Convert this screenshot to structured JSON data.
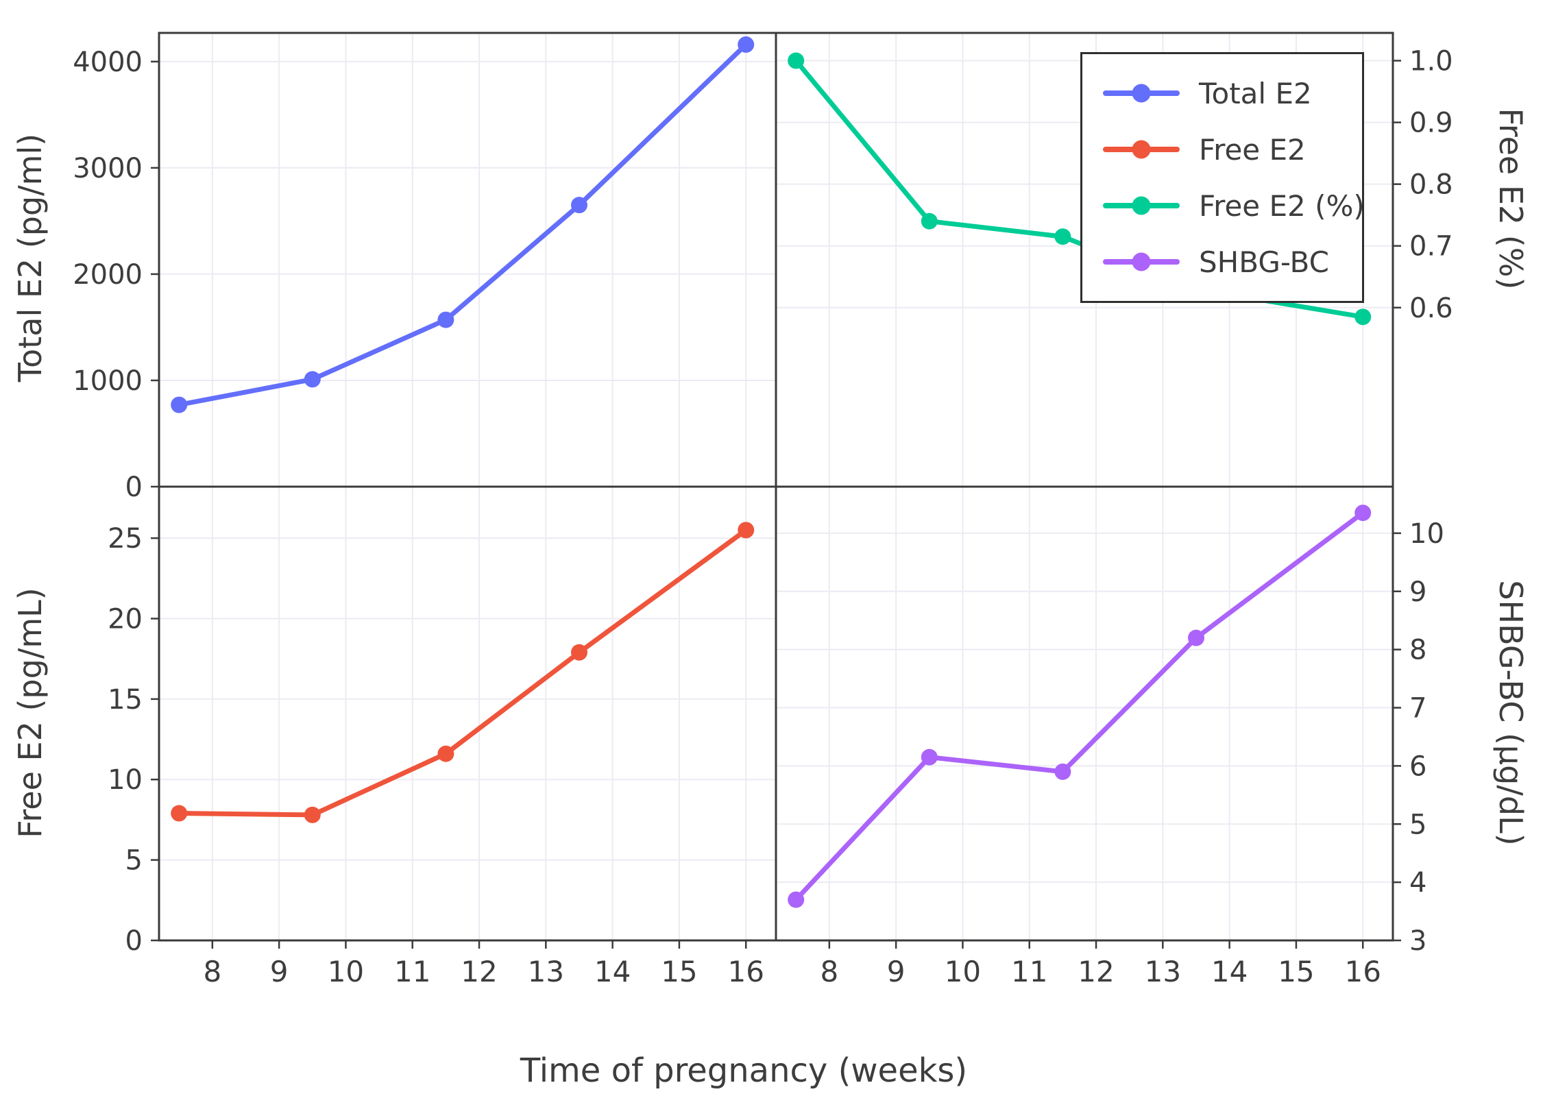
{
  "chart_data": {
    "type": "line",
    "layout_hint": "2x2 grid of panels with shared x-axis; legend box inside top-right panel; grid on (faint)",
    "xlabel": "Time of pregnancy (weeks)",
    "x_tick_labels": [
      "8",
      "9",
      "10",
      "11",
      "12",
      "13",
      "14",
      "15",
      "16"
    ],
    "x_tick_values": [
      8,
      9,
      10,
      11,
      12,
      13,
      14,
      15,
      16
    ],
    "xlim": [
      7.2,
      16.45
    ],
    "x": [
      7.5,
      9.5,
      11.5,
      13.5,
      16
    ],
    "panels": [
      {
        "position": "top-left",
        "series": "Total E2",
        "color": "#636EFA",
        "ylabel": "Total E2 (pg/ml)",
        "axis_side": "left",
        "ylim": [
          0,
          4270
        ],
        "y_ticks": [
          0,
          1000,
          2000,
          3000,
          4000
        ],
        "y_tick_labels": [
          "0",
          "1000",
          "2000",
          "3000",
          "4000"
        ],
        "values": [
          770,
          1010,
          1570,
          2650,
          4160
        ]
      },
      {
        "position": "top-right",
        "series": "Free E2 (%)",
        "color": "#00CC96",
        "ylabel": "Free E2 (%)",
        "axis_side": "right",
        "ylim": [
          0.31,
          1.045
        ],
        "y_ticks": [
          0.6,
          0.7,
          0.8,
          0.9,
          1.0
        ],
        "y_tick_labels": [
          "0.6",
          "0.7",
          "0.8",
          "0.9",
          "1.0"
        ],
        "values": [
          1.0,
          0.74,
          0.715,
          0.63,
          0.585
        ]
      },
      {
        "position": "bottom-left",
        "series": "Free E2",
        "color": "#EF553B",
        "ylabel": "Free E2 (pg/mL)",
        "axis_side": "left",
        "ylim": [
          0,
          28.2
        ],
        "y_ticks": [
          0,
          5,
          10,
          15,
          20,
          25
        ],
        "y_tick_labels": [
          "0",
          "5",
          "10",
          "15",
          "20",
          "25"
        ],
        "values": [
          7.9,
          7.8,
          11.6,
          17.9,
          25.5
        ]
      },
      {
        "position": "bottom-right",
        "series": "SHBG-BC",
        "color": "#AB63FA",
        "ylabel": "SHBG-BC (µg/dL)",
        "axis_side": "right",
        "ylim": [
          3,
          10.8
        ],
        "y_ticks": [
          3,
          4,
          5,
          6,
          7,
          8,
          9,
          10
        ],
        "y_tick_labels": [
          "3",
          "4",
          "5",
          "6",
          "7",
          "8",
          "9",
          "10"
        ],
        "values": [
          3.7,
          6.15,
          5.9,
          8.2,
          10.35
        ]
      }
    ],
    "legend": {
      "position": "inside top-right panel",
      "items": [
        {
          "label": "Total E2",
          "color": "#636EFA"
        },
        {
          "label": "Free E2",
          "color": "#EF553B"
        },
        {
          "label": "Free E2 (%)",
          "color": "#00CC96"
        },
        {
          "label": "SHBG-BC",
          "color": "#AB63FA"
        }
      ]
    },
    "style": {
      "grid_color": "#ecebf3",
      "border_color": "#3b3b3b",
      "text_color": "#3d3d3d",
      "background": "#ffffff"
    }
  }
}
